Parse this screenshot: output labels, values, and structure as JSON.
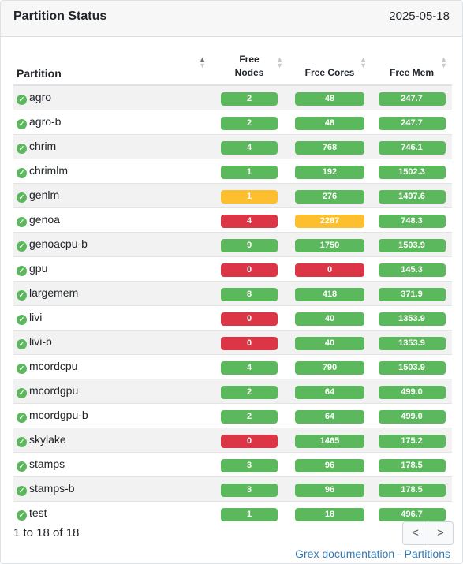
{
  "card": {
    "title": "Partition Status",
    "date": "2025-05-18"
  },
  "table": {
    "headers": {
      "partition": "Partition",
      "free_nodes_line1": "Free",
      "free_nodes_line2": "Nodes",
      "free_cores": "Free Cores",
      "free_mem": "Free Mem"
    },
    "sort_up_icon": "▲",
    "sort_down_icon": "▼",
    "check_icon": "✓",
    "status_colors": {
      "green": "#5cb85c",
      "yellow": "#fdbf2d",
      "red": "#dc3545"
    },
    "rows": [
      {
        "name": "agro",
        "nodes": "2",
        "nodes_status": "green",
        "cores": "48",
        "cores_status": "green",
        "mem": "247.7",
        "mem_status": "green"
      },
      {
        "name": "agro-b",
        "nodes": "2",
        "nodes_status": "green",
        "cores": "48",
        "cores_status": "green",
        "mem": "247.7",
        "mem_status": "green"
      },
      {
        "name": "chrim",
        "nodes": "4",
        "nodes_status": "green",
        "cores": "768",
        "cores_status": "green",
        "mem": "746.1",
        "mem_status": "green"
      },
      {
        "name": "chrimlm",
        "nodes": "1",
        "nodes_status": "green",
        "cores": "192",
        "cores_status": "green",
        "mem": "1502.3",
        "mem_status": "green"
      },
      {
        "name": "genlm",
        "nodes": "1",
        "nodes_status": "yellow",
        "cores": "276",
        "cores_status": "green",
        "mem": "1497.6",
        "mem_status": "green"
      },
      {
        "name": "genoa",
        "nodes": "4",
        "nodes_status": "red",
        "cores": "2287",
        "cores_status": "yellow",
        "mem": "748.3",
        "mem_status": "green"
      },
      {
        "name": "genoacpu-b",
        "nodes": "9",
        "nodes_status": "green",
        "cores": "1750",
        "cores_status": "green",
        "mem": "1503.9",
        "mem_status": "green"
      },
      {
        "name": "gpu",
        "nodes": "0",
        "nodes_status": "red",
        "cores": "0",
        "cores_status": "red",
        "mem": "145.3",
        "mem_status": "green"
      },
      {
        "name": "largemem",
        "nodes": "8",
        "nodes_status": "green",
        "cores": "418",
        "cores_status": "green",
        "mem": "371.9",
        "mem_status": "green"
      },
      {
        "name": "livi",
        "nodes": "0",
        "nodes_status": "red",
        "cores": "40",
        "cores_status": "green",
        "mem": "1353.9",
        "mem_status": "green"
      },
      {
        "name": "livi-b",
        "nodes": "0",
        "nodes_status": "red",
        "cores": "40",
        "cores_status": "green",
        "mem": "1353.9",
        "mem_status": "green"
      },
      {
        "name": "mcordcpu",
        "nodes": "4",
        "nodes_status": "green",
        "cores": "790",
        "cores_status": "green",
        "mem": "1503.9",
        "mem_status": "green"
      },
      {
        "name": "mcordgpu",
        "nodes": "2",
        "nodes_status": "green",
        "cores": "64",
        "cores_status": "green",
        "mem": "499.0",
        "mem_status": "green"
      },
      {
        "name": "mcordgpu-b",
        "nodes": "2",
        "nodes_status": "green",
        "cores": "64",
        "cores_status": "green",
        "mem": "499.0",
        "mem_status": "green"
      },
      {
        "name": "skylake",
        "nodes": "0",
        "nodes_status": "red",
        "cores": "1465",
        "cores_status": "green",
        "mem": "175.2",
        "mem_status": "green"
      },
      {
        "name": "stamps",
        "nodes": "3",
        "nodes_status": "green",
        "cores": "96",
        "cores_status": "green",
        "mem": "178.5",
        "mem_status": "green"
      },
      {
        "name": "stamps-b",
        "nodes": "3",
        "nodes_status": "green",
        "cores": "96",
        "cores_status": "green",
        "mem": "178.5",
        "mem_status": "green"
      },
      {
        "name": "test",
        "nodes": "1",
        "nodes_status": "green",
        "cores": "18",
        "cores_status": "green",
        "mem": "496.7",
        "mem_status": "green"
      }
    ]
  },
  "footer": {
    "info": "1 to 18 of 18",
    "prev_label": "<",
    "next_label": ">",
    "doc_link": "Grex documentation - Partitions"
  }
}
